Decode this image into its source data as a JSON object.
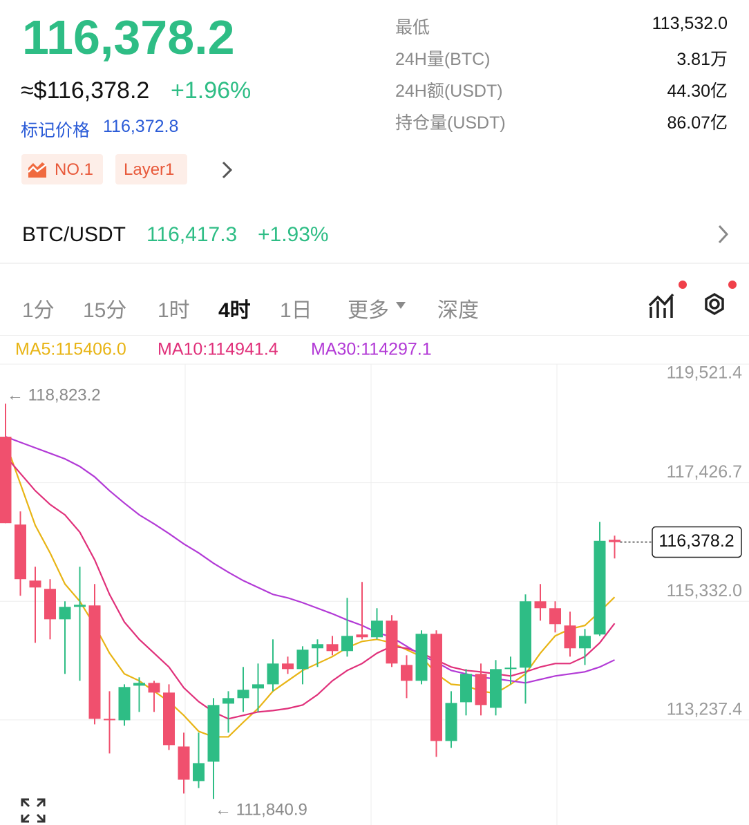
{
  "header": {
    "price": "116,378.2",
    "usd_price": "≈$116,378.2",
    "change": "+1.96%",
    "mark_label": "标记价格",
    "mark_price": "116,372.8",
    "tags": [
      "NO.1",
      "Layer1"
    ]
  },
  "stats": [
    {
      "label": "最低",
      "value": "113,532.0"
    },
    {
      "label": "24H量(BTC)",
      "value": "3.81万"
    },
    {
      "label": "24H额(USDT)",
      "value": "44.30亿"
    },
    {
      "label": "持仓量(USDT)",
      "value": "86.07亿"
    }
  ],
  "spot": {
    "pair": "BTC/USDT",
    "price": "116,417.3",
    "change": "+1.93%"
  },
  "tabs": [
    "1分",
    "15分",
    "1时",
    "4时",
    "1日",
    "更多",
    "深度"
  ],
  "active_tab": 3,
  "chart_data": {
    "type": "candlestick",
    "open": [
      118239,
      116688,
      115698,
      115552,
      115014,
      115234,
      115259,
      113256,
      113231,
      113842,
      113891,
      113720,
      112767,
      112157,
      112499,
      113524,
      113622,
      113793,
      113866,
      114233,
      114135,
      114502,
      114575,
      114453,
      114746,
      114697,
      114990,
      114208,
      113928,
      114758,
      112865,
      113549,
      114050,
      113451,
      114135,
      114160,
      115332,
      115210,
      114905,
      114502,
      114746,
      116419
    ],
    "high": [
      118823.2,
      116920,
      115943,
      115723,
      115332,
      115943,
      115637,
      113744,
      113866,
      113989,
      113928,
      113866,
      113012,
      113012,
      113622,
      113744,
      114172,
      114233,
      114660,
      114355,
      114538,
      114660,
      114721,
      115393,
      115674,
      115210,
      115088,
      114379,
      114819,
      114819,
      113744,
      114135,
      114233,
      114294,
      114355,
      115454,
      115637,
      115332,
      115149,
      114843,
      116736,
      116492
    ],
    "low": [
      116712,
      115430,
      114599,
      114660,
      114050,
      113928,
      113158,
      112645,
      113134,
      113378,
      113378,
      112706,
      111937,
      112034,
      111840.9,
      113012,
      113378,
      113378,
      113744,
      114050,
      113866,
      114172,
      114379,
      114355,
      114660,
      114660,
      114172,
      113622,
      113866,
      112584,
      112743,
      113317,
      113317,
      113317,
      113866,
      113524,
      114990,
      114782,
      114355,
      114208,
      114721,
      116089
    ],
    "close": [
      116712,
      115723,
      115576,
      115014,
      115234,
      115271,
      113256,
      113231,
      113818,
      113891,
      113720,
      112792,
      112181,
      112474,
      113500,
      113622,
      113769,
      113866,
      114233,
      114135,
      114477,
      114575,
      114453,
      114721,
      114697,
      114990,
      114233,
      113928,
      114758,
      112865,
      113537,
      114050,
      113500,
      114135,
      114160,
      115332,
      115210,
      114929,
      114502,
      114721,
      116400,
      116378.2
    ],
    "up_color": "#2ebd85",
    "down_color": "#f0506e",
    "series": [
      {
        "name": "MA5:115406.0",
        "color": "#e8b414",
        "values": [
          118141,
          117408,
          116675,
          116187,
          115637,
          115332,
          114905,
          114416,
          114050,
          113928,
          113744,
          113561,
          113317,
          113036,
          112938,
          112938,
          113195,
          113439,
          113744,
          113928,
          114111,
          114233,
          114355,
          114514,
          114624,
          114660,
          114599,
          114477,
          114355,
          114050,
          113866,
          113842,
          113744,
          113708,
          113866,
          114050,
          114416,
          114721,
          114843,
          114905,
          115149,
          115406.0
        ]
      },
      {
        "name": "MA10:114941.4",
        "color": "#e0307a",
        "values": [
          117897,
          117591,
          117286,
          117042,
          116859,
          116553,
          116065,
          115454,
          114966,
          114660,
          114416,
          114172,
          113805,
          113561,
          113378,
          113256,
          113317,
          113378,
          113402,
          113439,
          113500,
          113683,
          113928,
          114111,
          114233,
          114416,
          114538,
          114502,
          114416,
          114294,
          114172,
          114111,
          114086,
          114050,
          114013,
          114086,
          114172,
          114233,
          114233,
          114355,
          114599,
          114941.4
        ]
      },
      {
        "name": "MA30:114297.1",
        "color": "#b23ad6",
        "values": [
          118239,
          118141,
          118043,
          117946,
          117848,
          117714,
          117530,
          117286,
          117066,
          116859,
          116700,
          116529,
          116346,
          116187,
          116004,
          115845,
          115698,
          115576,
          115454,
          115393,
          115308,
          115210,
          115112,
          115002,
          114905,
          114782,
          114697,
          114538,
          114379,
          114257,
          114111,
          114050,
          113989,
          113964,
          113928,
          113891,
          113952,
          114013,
          114050,
          114086,
          114172,
          114297.1
        ]
      }
    ],
    "ylim": [
      111380.9,
      119521.4
    ],
    "yticks": [
      {
        "value": 119521.4,
        "label": "119,521.4"
      },
      {
        "value": 117426.7,
        "label": "117,426.7"
      },
      {
        "value": 115332.0,
        "label": "115,332.0"
      },
      {
        "value": 113237.4,
        "label": "113,237.4"
      }
    ],
    "grid": true,
    "annotations": [
      {
        "text": "← 118,823.2",
        "value": 118823.2
      },
      {
        "text": "← 111,840.9",
        "value": 111840.9
      }
    ],
    "last_price": {
      "value": 116378.2,
      "label": "116,378.2"
    }
  }
}
